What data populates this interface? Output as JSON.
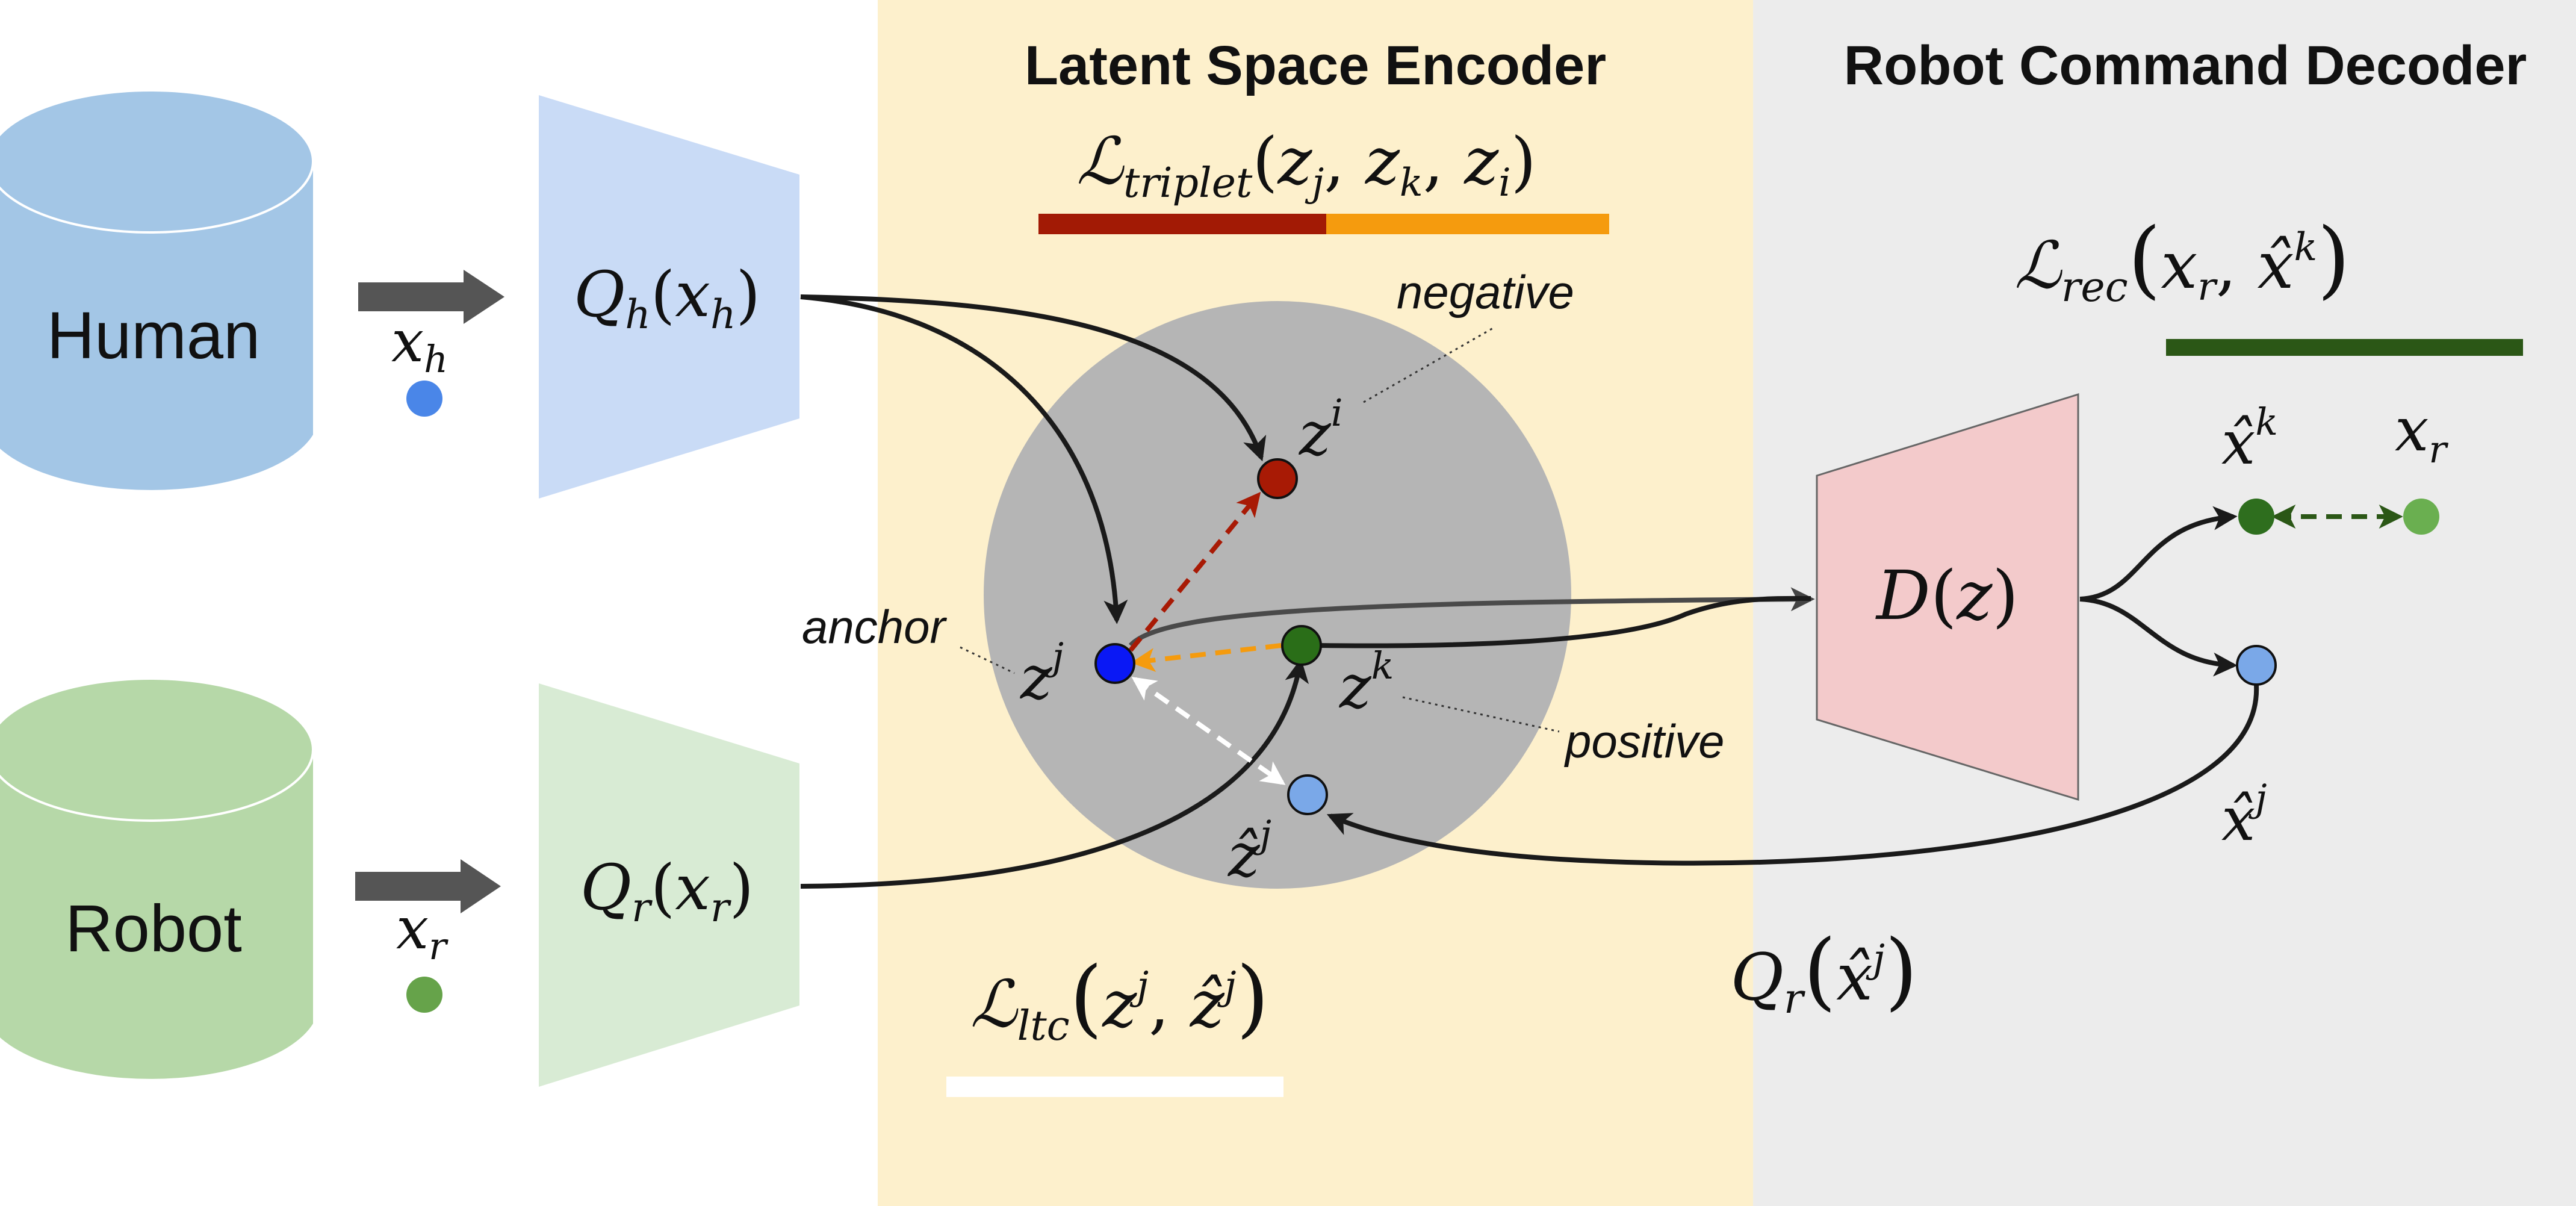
{
  "colors": {
    "encoder_panel": "#fdf0cc",
    "decoder_panel": "#ececec",
    "human_db": "#a3c6e6",
    "robot_db": "#b6d8a8",
    "human_encoder": "#c9dbf6",
    "robot_encoder": "#d8ebd4",
    "decoder": "#f3cacb",
    "latent_circle": "#b5b5b5",
    "anchor": "#0a18f5",
    "negative": "#a81a05",
    "positive": "#2a6e18",
    "reconstructed": "#7aa8e8",
    "human_point": "#4a86e8",
    "robot_point": "#66a34a",
    "recon_robot": "#2e6e1e",
    "target_robot": "#6aaf50",
    "triplet_bar_left": "#a21a05",
    "triplet_bar_right": "#f59b0e",
    "rec_bar": "#2b5716",
    "ltc_bar": "#ffffff"
  },
  "panels": {
    "encoder_title": "Latent Space Encoder",
    "decoder_title": "Robot Command Decoder"
  },
  "databases": {
    "human": "Human",
    "robot": "Robot"
  },
  "inputs": {
    "human": {
      "base": "x",
      "sub": "h"
    },
    "robot": {
      "base": "x",
      "sub": "r"
    }
  },
  "encoders": {
    "human": {
      "fn": "Q",
      "fn_sub": "h",
      "arg": "x",
      "arg_sub": "h"
    },
    "robot": {
      "fn": "Q",
      "fn_sub": "r",
      "arg": "x",
      "arg_sub": "r"
    }
  },
  "decoder": {
    "fn": "D",
    "arg": "z"
  },
  "latent_labels": {
    "negative": "negative",
    "anchor": "anchor",
    "positive": "positive",
    "zi": {
      "base": "z",
      "sup": "i"
    },
    "zj": {
      "base": "z",
      "sup": "j"
    },
    "zk": {
      "base": "z",
      "sup": "k"
    },
    "zhat_j": {
      "base": "ẑ",
      "sup": "j"
    }
  },
  "outputs": {
    "xhat_k": {
      "base": "x̂",
      "sup": "k"
    },
    "x_r": {
      "base": "x",
      "sub": "r"
    },
    "xhat_j": {
      "base": "x̂",
      "sup": "j"
    }
  },
  "losses": {
    "triplet": {
      "script": "ℒ",
      "sub": "triplet",
      "a": "z",
      "a_sub": "j",
      "b": "z",
      "b_sub": "k",
      "c": "z",
      "c_sub": "i"
    },
    "rec": {
      "script": "ℒ",
      "sub": "rec",
      "a": "x",
      "a_sub": "r",
      "b": "x̂",
      "b_sup": "k"
    },
    "ltc": {
      "script": "ℒ",
      "sub": "ltc",
      "a": "z",
      "a_sup": "j",
      "b": "ẑ",
      "b_sup": "j"
    },
    "reencode": {
      "fn": "Q",
      "fn_sub": "r",
      "arg": "x̂",
      "arg_sup": "j"
    }
  },
  "punct": {
    "open": "(",
    "close": ")",
    "comma": ","
  }
}
